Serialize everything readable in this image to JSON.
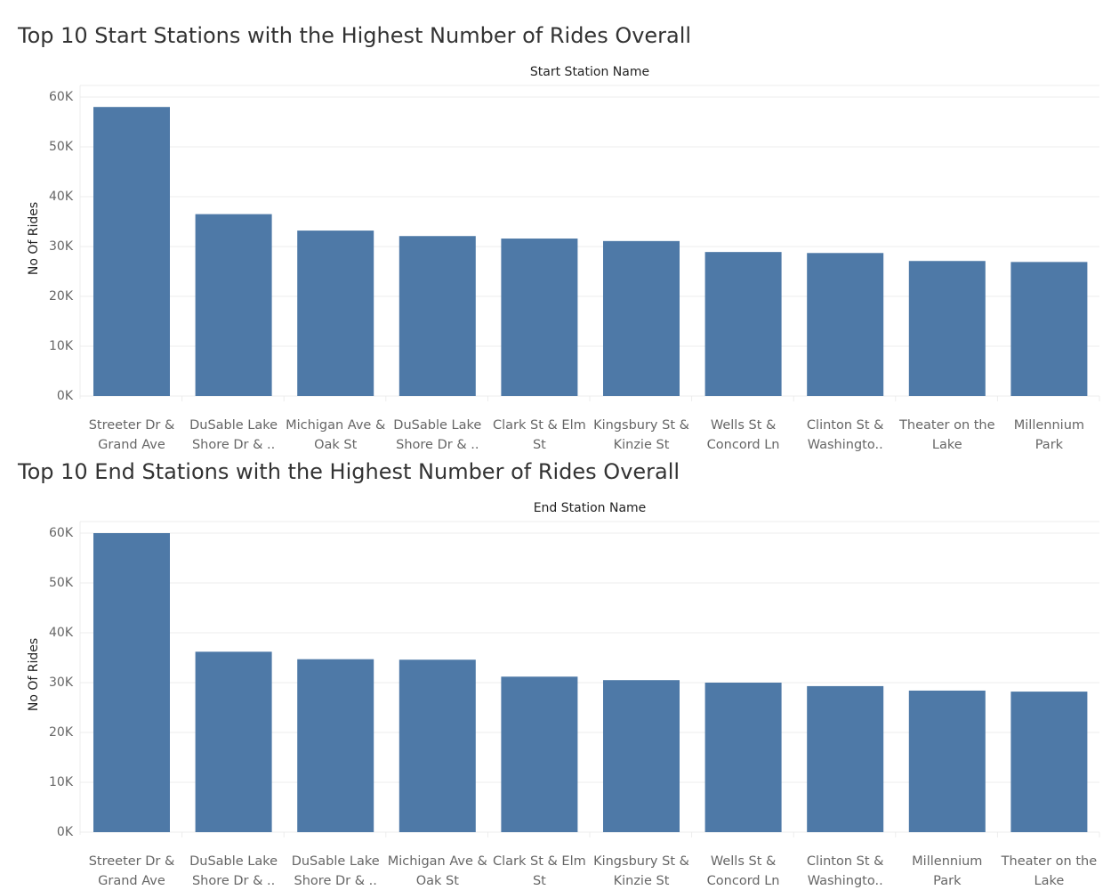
{
  "colors": {
    "bar": "#4e79a7"
  },
  "chart_data": [
    {
      "type": "bar",
      "title": "Top 10 Start Stations with the Highest Number of Rides Overall",
      "xlabel": "Start Station Name",
      "ylabel": "No Of Rides",
      "ylim": [
        0,
        60000
      ],
      "yticks": [
        "0K",
        "10K",
        "20K",
        "30K",
        "40K",
        "50K",
        "60K"
      ],
      "categories": [
        [
          "Streeter Dr &",
          "Grand Ave"
        ],
        [
          "DuSable Lake",
          "Shore Dr & .."
        ],
        [
          "Michigan Ave &",
          "Oak St"
        ],
        [
          "DuSable Lake",
          "Shore Dr & .."
        ],
        [
          "Clark St & Elm",
          "St"
        ],
        [
          "Kingsbury St &",
          "Kinzie St"
        ],
        [
          "Wells St &",
          "Concord Ln"
        ],
        [
          "Clinton St &",
          "Washingto.."
        ],
        [
          "Theater on the",
          "Lake"
        ],
        [
          "Millennium",
          "Park"
        ]
      ],
      "values": [
        58000,
        36500,
        33200,
        32100,
        31600,
        31100,
        28900,
        28700,
        27100,
        26900
      ]
    },
    {
      "type": "bar",
      "title": "Top 10 End Stations with the Highest Number of Rides Overall",
      "xlabel": "End Station Name",
      "ylabel": "No Of Rides",
      "ylim": [
        0,
        60000
      ],
      "yticks": [
        "0K",
        "10K",
        "20K",
        "30K",
        "40K",
        "50K",
        "60K"
      ],
      "categories": [
        [
          "Streeter Dr &",
          "Grand Ave"
        ],
        [
          "DuSable Lake",
          "Shore Dr & .."
        ],
        [
          "DuSable Lake",
          "Shore Dr & .."
        ],
        [
          "Michigan Ave &",
          "Oak St"
        ],
        [
          "Clark St & Elm",
          "St"
        ],
        [
          "Kingsbury St &",
          "Kinzie St"
        ],
        [
          "Wells St &",
          "Concord Ln"
        ],
        [
          "Clinton St &",
          "Washingto.."
        ],
        [
          "Millennium",
          "Park"
        ],
        [
          "Theater on the",
          "Lake"
        ]
      ],
      "values": [
        60000,
        36200,
        34700,
        34600,
        31200,
        30500,
        30000,
        29300,
        28400,
        28200
      ]
    }
  ]
}
